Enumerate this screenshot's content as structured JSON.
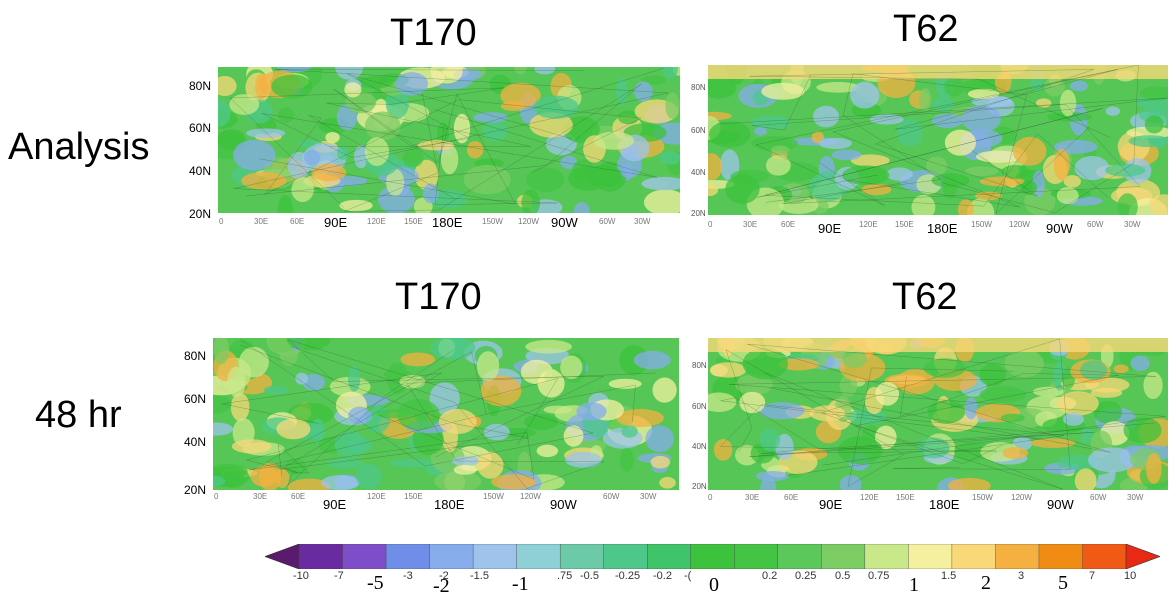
{
  "columns": {
    "left": "T170",
    "right": "T62"
  },
  "rows": {
    "top": "Analysis",
    "bottom": "48 hr"
  },
  "panels": {
    "a170": {
      "lat": [
        "80N",
        "60N",
        "40N",
        "20N"
      ],
      "lon_small": [
        "0",
        "30E",
        "60E",
        "120E",
        "150E",
        "150W",
        "120W",
        "60W",
        "30W"
      ],
      "lon_big": [
        "90E",
        "180E",
        "90W"
      ]
    },
    "a62": {
      "lat": [
        "80N",
        "60N",
        "40N",
        "20N"
      ],
      "lon_small": [
        "0",
        "30E",
        "60E",
        "120E",
        "150E",
        "150W",
        "120W",
        "60W",
        "30W"
      ],
      "lon_big": [
        "90E",
        "180E",
        "90W"
      ]
    },
    "f170": {
      "lat": [
        "80N",
        "60N",
        "40N",
        "20N"
      ],
      "lon_small": [
        "0",
        "30E",
        "60E",
        "120E",
        "150E",
        "150W",
        "120W",
        "60W",
        "30W"
      ],
      "lon_big": [
        "90E",
        "180E",
        "90W"
      ]
    },
    "f62": {
      "lat": [
        "80N",
        "60N",
        "40N",
        "20N"
      ],
      "lon_small": [
        "0",
        "30E",
        "60E",
        "120E",
        "150E",
        "150W",
        "120W",
        "60W",
        "30W"
      ],
      "lon_big": [
        "90E",
        "180E",
        "90W"
      ]
    }
  },
  "colorbar": {
    "colors": [
      "#5a1a6e",
      "#6a2aa0",
      "#7e4ec8",
      "#6f8ee8",
      "#86acec",
      "#9ec4ec",
      "#8ed0d6",
      "#6ccaa8",
      "#4ec88a",
      "#40c46a",
      "#3cc23c",
      "#44c444",
      "#5cc85c",
      "#7ccc64",
      "#c8e88a",
      "#f4f0a0",
      "#f8d878",
      "#f4b040",
      "#f08c14",
      "#f05a14",
      "#e82a14"
    ],
    "small_ticks": [
      "-10",
      "-7",
      "-3",
      "-2",
      "-1.5",
      "",
      ".75",
      "-0.5",
      "-0.25",
      "-0.2",
      "-(",
      "0.2",
      "0.25",
      "0.5",
      "0.75",
      "1.5",
      "3",
      "7",
      "10"
    ],
    "big_ticks": [
      "-5",
      "-2",
      "-1",
      "0",
      "1",
      "2",
      "5"
    ]
  }
}
